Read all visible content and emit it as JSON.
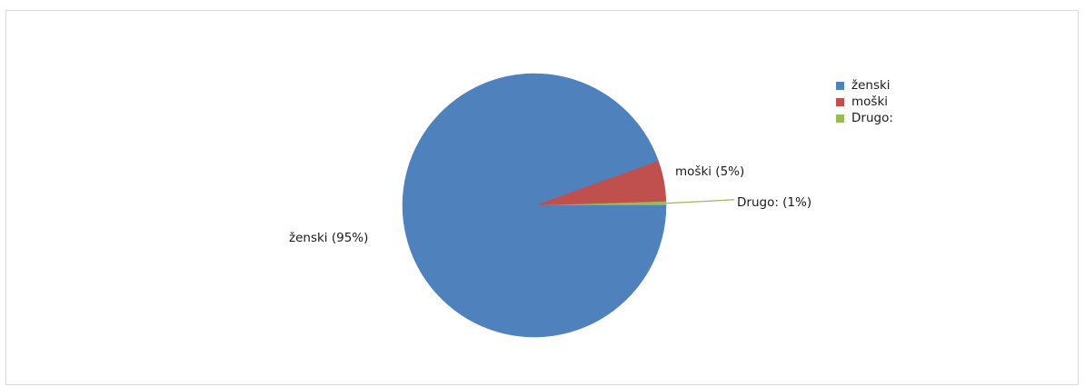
{
  "chart_data": {
    "type": "pie",
    "title": "",
    "legend_position": "right",
    "slices": [
      {
        "name": "ženski",
        "value": 94.5,
        "label": "ženski (95%)",
        "color": "#4f81bd"
      },
      {
        "name": "moški",
        "value": 5.0,
        "label": "moški (5%)",
        "color": "#c0504d"
      },
      {
        "name": "Drugo:",
        "value": 0.5,
        "label": "Drugo: (1%)",
        "color": "#9bbb59"
      }
    ]
  }
}
